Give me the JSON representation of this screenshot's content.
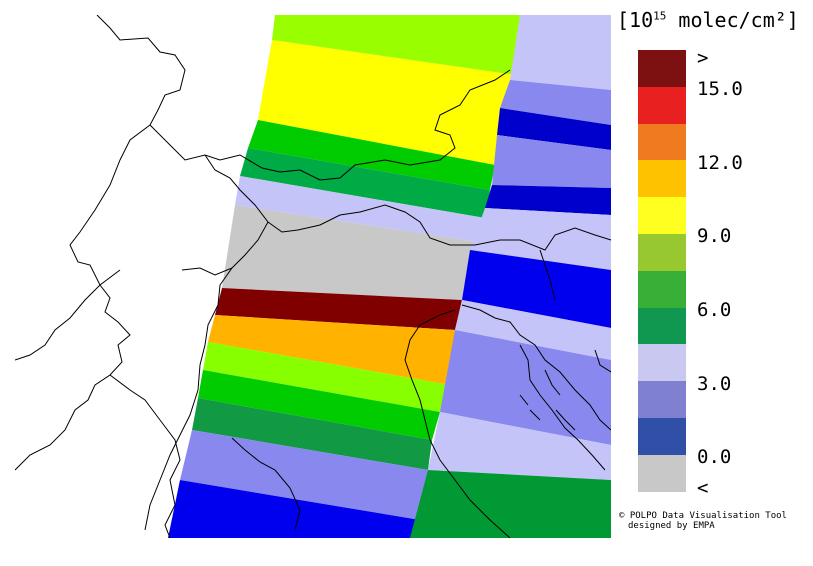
{
  "legend": {
    "unit_prefix": "[10",
    "unit_exp": "15",
    "unit_suffix": " molec/cm²]",
    "colors": [
      "#7d1010",
      "#e82020",
      "#f07a20",
      "#ffc200",
      "#ffff20",
      "#98c830",
      "#38b038",
      "#109850",
      "#c8c8f0",
      "#8080d0",
      "#3050a8",
      "#c8c8c8"
    ],
    "ticks": [
      ">",
      "15.0",
      "12.0",
      "9.0",
      "6.0",
      "3.0",
      "0.0",
      "<"
    ]
  },
  "credit": {
    "line1": "© POLPO Data Visualisation Tool",
    "line2": "designed by EMPA"
  },
  "map": {
    "swath_colors": [
      "#99ff00",
      "#ffff00",
      "#00cc00",
      "#00aa44",
      "#c4c4f8",
      "#c8c8c8",
      "#800000",
      "#ffb200",
      "#88ff00",
      "#00cc00",
      "#119944",
      "#8888ee",
      "#0000ee"
    ],
    "east_swath_colors": [
      "#c4c4f8",
      "#8888ee",
      "#0000cc",
      "#8888ee",
      "#0000cc",
      "#c4c4f8",
      "#0000ee",
      "#c4c4f8",
      "#8888ee",
      "#c4c4f8",
      "#009933"
    ]
  }
}
